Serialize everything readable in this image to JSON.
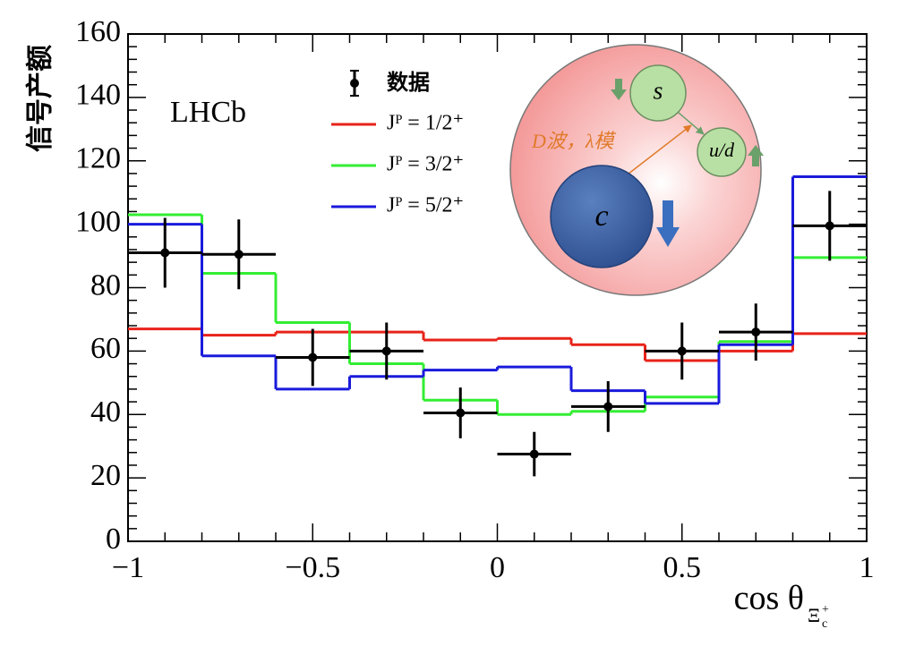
{
  "chart_data": {
    "type": "histogram",
    "ylabel": "信号产额",
    "xlabel": "cos θ",
    "xlabel_sub": "Ξ",
    "xlabel_sub_sub": "c",
    "xlabel_sub_sup": "+",
    "annotation": "LHCb",
    "bins": [
      -1,
      -0.8,
      -0.6,
      -0.4,
      -0.2,
      0,
      0.2,
      0.4,
      0.6,
      0.8,
      1
    ],
    "xlim": [
      -1,
      1
    ],
    "ylim": [
      0,
      160
    ],
    "xticks": [
      {
        "value": -1,
        "label": "−1"
      },
      {
        "value": -0.5,
        "label": "−0.5"
      },
      0,
      0.5,
      1
    ],
    "yticks": [
      0,
      20,
      40,
      60,
      80,
      100,
      120,
      140,
      160
    ],
    "legend": "top",
    "series": [
      {
        "name": "数据",
        "style": "points",
        "color": "#000000",
        "values": [
          91,
          90.5,
          58,
          60,
          40.5,
          27.5,
          42.5,
          60,
          66,
          99.5
        ],
        "errors": [
          11,
          11,
          9,
          9,
          8,
          7,
          8,
          9,
          9,
          11
        ]
      },
      {
        "name": "Jᴾ = 1/2⁺",
        "style": "step",
        "color": "#e8231a",
        "values": [
          67,
          65,
          66,
          66,
          63.5,
          64,
          62,
          57,
          60,
          65.5
        ]
      },
      {
        "name": "Jᴾ = 3/2⁺",
        "style": "step",
        "color": "#33ee33",
        "values": [
          103,
          84.5,
          69,
          56,
          44.5,
          40,
          41,
          45.5,
          63,
          89.5
        ]
      },
      {
        "name": "Jᴾ = 5/2⁺",
        "style": "step",
        "color": "#1a1adc",
        "values": [
          100,
          58.5,
          48,
          52,
          54,
          55,
          47.5,
          43.5,
          62,
          115
        ]
      }
    ],
    "inset": {
      "s": "s",
      "ud": "u/d",
      "c": "c",
      "wave": "D波，λ模"
    }
  }
}
